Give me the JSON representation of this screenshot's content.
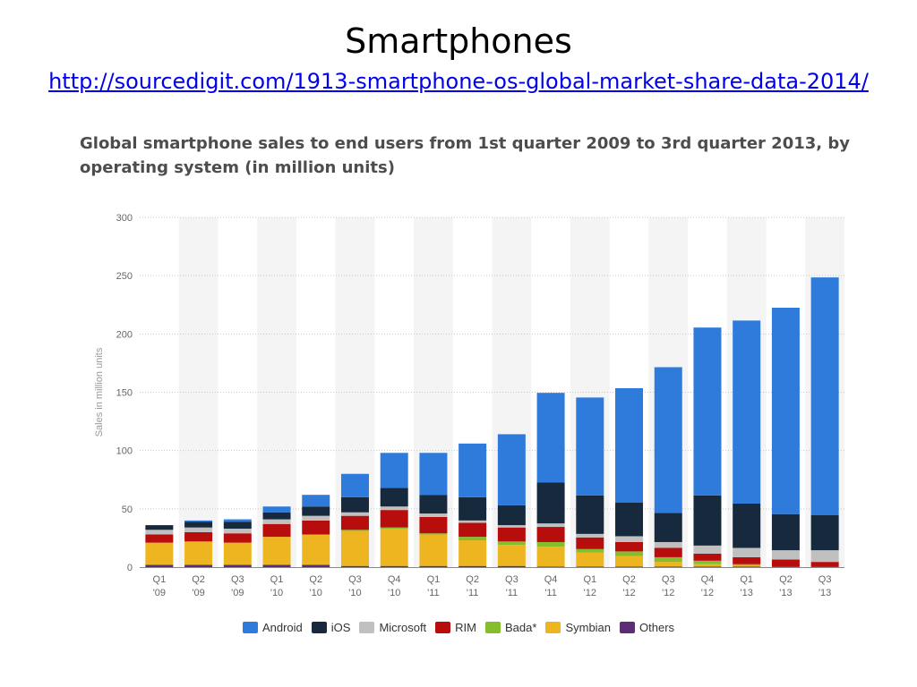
{
  "slide": {
    "title": "Smartphones",
    "link": "http://sourcedigit.com/1913-smartphone-os-global-market-share-data-2014/"
  },
  "chart_data": {
    "type": "bar",
    "stacked": true,
    "title": "Global smartphone sales to end users from 1st quarter 2009 to 3rd quarter 2013, by operating system (in million units)",
    "xlabel": "",
    "ylabel": "Sales in million units",
    "ylim": [
      0,
      300
    ],
    "yticks": [
      0,
      50,
      100,
      150,
      200,
      250,
      300
    ],
    "grid": true,
    "legend": "bottom",
    "categories": [
      "Q1 '09",
      "Q2 '09",
      "Q3 '09",
      "Q1 '10",
      "Q2 '10",
      "Q3 '10",
      "Q4 '10",
      "Q1 '11",
      "Q2 '11",
      "Q3 '11",
      "Q4 '11",
      "Q1 '12",
      "Q2 '12",
      "Q3 '12",
      "Q4 '12",
      "Q1 '13",
      "Q2 '13",
      "Q3 '13"
    ],
    "series": [
      {
        "name": "Others",
        "color": "#5c2d74",
        "values": [
          2,
          2,
          2,
          2,
          2,
          1,
          1,
          1,
          1,
          1,
          0.5,
          0.5,
          0.5,
          0.5,
          0.5,
          0.5,
          0.5,
          0.5
        ]
      },
      {
        "name": "Symbian",
        "color": "#edb51f",
        "values": [
          19,
          20,
          19,
          24,
          26,
          30,
          32,
          27,
          22,
          18,
          17,
          12,
          9,
          4,
          2,
          1,
          0,
          0
        ]
      },
      {
        "name": "Bada*",
        "color": "#86bd2c",
        "values": [
          0,
          0,
          0,
          0,
          0,
          1,
          1,
          1,
          3,
          3,
          4,
          3,
          4,
          4,
          3,
          1,
          0,
          0
        ]
      },
      {
        "name": "RIM",
        "color": "#b80d0d",
        "values": [
          7,
          8,
          8,
          11,
          12,
          12,
          15,
          14,
          12,
          12,
          13,
          10,
          8,
          8,
          6,
          6,
          6,
          4
        ]
      },
      {
        "name": "Microsoft",
        "color": "#c0c0c0",
        "values": [
          4,
          4,
          4,
          4,
          4,
          3,
          3,
          3,
          2,
          2,
          3,
          3,
          5,
          5,
          7,
          8,
          8,
          10
        ]
      },
      {
        "name": "iOS",
        "color": "#172a3d",
        "values": [
          4,
          5,
          6,
          6,
          8,
          13,
          16,
          16,
          20,
          17,
          35,
          33,
          29,
          25,
          43,
          38,
          31,
          30
        ]
      },
      {
        "name": "Android",
        "color": "#2e7bdb",
        "values": [
          0,
          1,
          2,
          5,
          10,
          20,
          30,
          36,
          46,
          61,
          77,
          84,
          98,
          125,
          144,
          157,
          177,
          204
        ]
      }
    ]
  }
}
